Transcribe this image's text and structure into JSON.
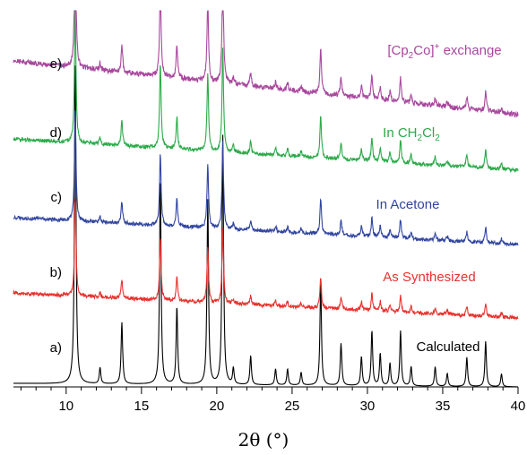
{
  "chart_data": {
    "type": "line",
    "xlabel": "2θ (°)",
    "xlabel_parts": {
      "symbol": "2θ",
      "unit": "(°)"
    },
    "xlim": [
      6.5,
      40
    ],
    "xticks_major": [
      10,
      15,
      20,
      25,
      30,
      35,
      40
    ],
    "xtick_labels": [
      "10",
      "15",
      "20",
      "25",
      "30",
      "35",
      "40"
    ],
    "grid": false,
    "peaks": [
      {
        "x": 10.6,
        "rel": 1.0
      },
      {
        "x": 12.25,
        "rel": 0.05
      },
      {
        "x": 13.7,
        "rel": 0.19
      },
      {
        "x": 16.25,
        "rel": 0.64
      },
      {
        "x": 17.35,
        "rel": 0.24
      },
      {
        "x": 19.4,
        "rel": 0.57
      },
      {
        "x": 20.4,
        "rel": 0.77
      },
      {
        "x": 21.1,
        "rel": 0.05
      },
      {
        "x": 22.25,
        "rel": 0.09
      },
      {
        "x": 23.9,
        "rel": 0.05
      },
      {
        "x": 24.7,
        "rel": 0.05
      },
      {
        "x": 25.6,
        "rel": 0.04
      },
      {
        "x": 26.9,
        "rel": 0.32
      },
      {
        "x": 28.25,
        "rel": 0.13
      },
      {
        "x": 29.6,
        "rel": 0.09
      },
      {
        "x": 30.3,
        "rel": 0.17
      },
      {
        "x": 30.85,
        "rel": 0.1
      },
      {
        "x": 31.5,
        "rel": 0.07
      },
      {
        "x": 32.2,
        "rel": 0.17
      },
      {
        "x": 32.9,
        "rel": 0.06
      },
      {
        "x": 34.5,
        "rel": 0.06
      },
      {
        "x": 35.3,
        "rel": 0.04
      },
      {
        "x": 36.6,
        "rel": 0.09
      },
      {
        "x": 37.85,
        "rel": 0.14
      },
      {
        "x": 38.9,
        "rel": 0.04
      }
    ],
    "series": [
      {
        "letter": "a)",
        "label": "Calculated",
        "color": "#000000",
        "noise": 0
      },
      {
        "letter": "b)",
        "label": "As Synthesized",
        "color": "#e8322d",
        "noise": 1
      },
      {
        "letter": "c)",
        "label": "In Acetone",
        "color": "#3044a0",
        "noise": 1
      },
      {
        "letter": "d)",
        "label_parts": [
          "In CH",
          "2",
          "Cl",
          "2"
        ],
        "color": "#2aaa48",
        "noise": 1
      },
      {
        "letter": "e)",
        "label_parts": [
          "[Cp",
          "2",
          "Co]",
          "+",
          " exchange"
        ],
        "color": "#a8479e",
        "noise": 1.4
      }
    ]
  }
}
